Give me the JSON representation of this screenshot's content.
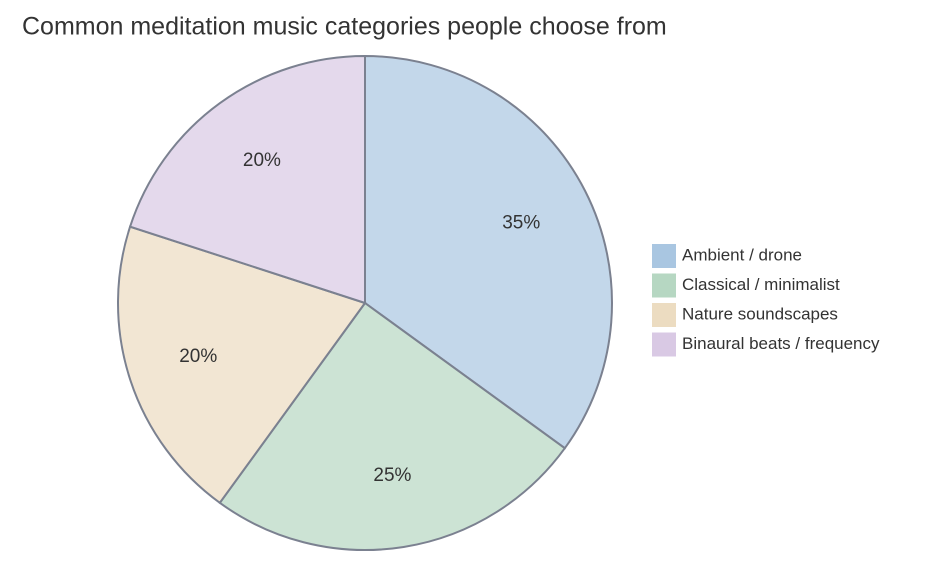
{
  "chart_data": {
    "type": "pie",
    "title": "Common meditation music categories people choose from",
    "categories": [
      "Ambient / drone",
      "Classical / minimalist",
      "Nature soundscapes",
      "Binaural beats / frequency"
    ],
    "values": [
      35,
      25,
      20,
      20
    ],
    "value_labels": [
      "35%",
      "25%",
      "20%",
      "20%"
    ],
    "colors": [
      "#a9c6e1",
      "#b6d7c2",
      "#ecdcc1",
      "#d9c9e4"
    ],
    "legend": "right"
  }
}
